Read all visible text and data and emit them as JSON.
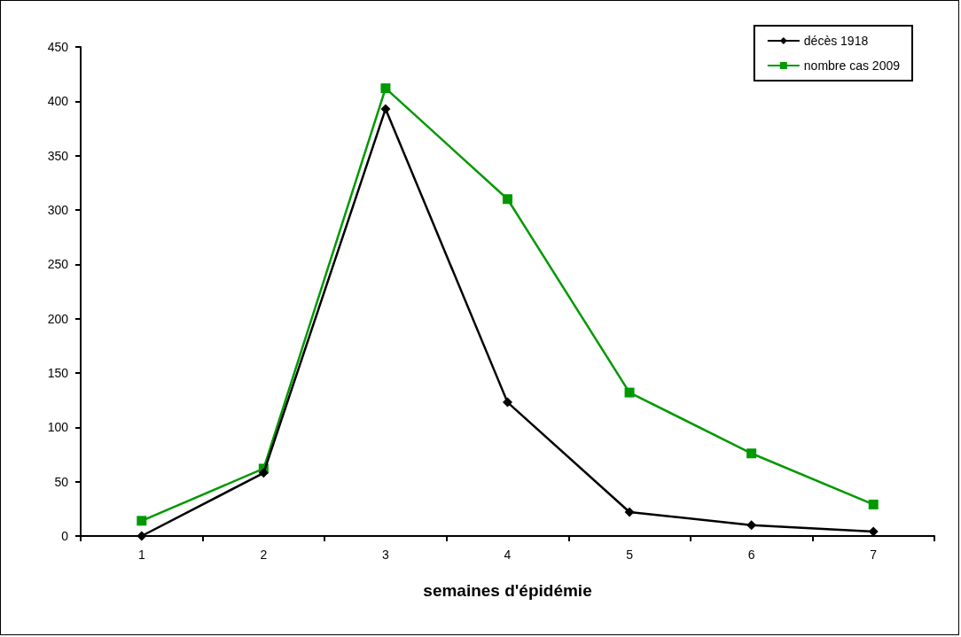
{
  "chart_data": {
    "type": "line",
    "xlabel": "semaines d'épidémie",
    "categories": [
      "1",
      "2",
      "3",
      "4",
      "5",
      "6",
      "7"
    ],
    "series": [
      {
        "name": "décès 1918",
        "color": "#000000",
        "marker": "diamond",
        "values": [
          0,
          58,
          393,
          123,
          22,
          10,
          4
        ]
      },
      {
        "name": "nombre cas 2009",
        "color": "#009900",
        "marker": "square",
        "values": [
          14,
          62,
          412,
          310,
          132,
          76,
          29
        ]
      }
    ],
    "ylim": [
      0,
      450
    ],
    "yticks": [
      0,
      50,
      100,
      150,
      200,
      250,
      300,
      350,
      400,
      450
    ],
    "grid": false,
    "legend": "top right"
  }
}
